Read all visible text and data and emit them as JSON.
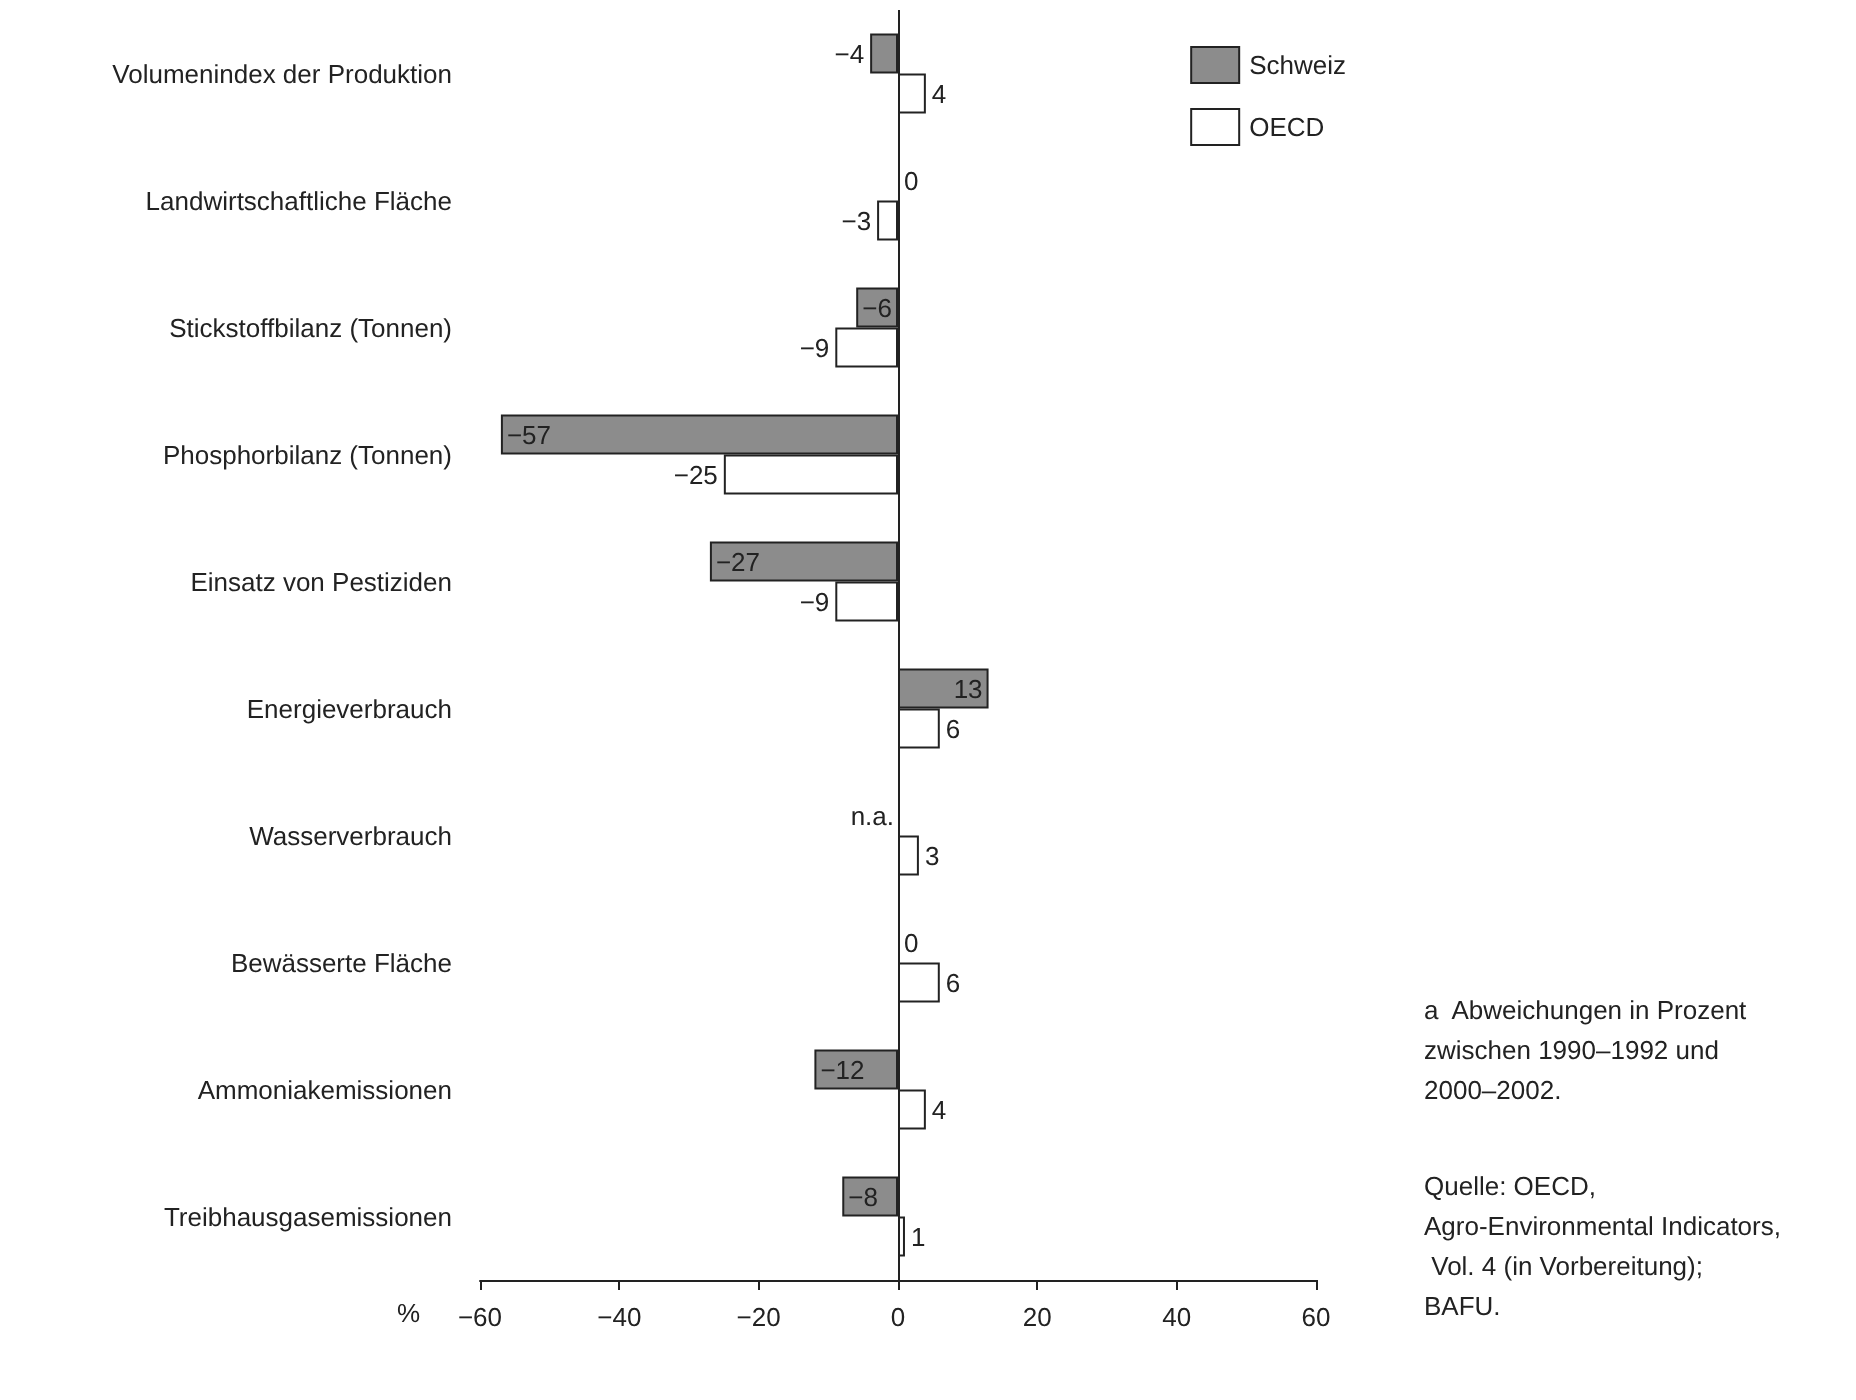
{
  "chart_data": {
    "type": "bar",
    "orientation": "horizontal",
    "xlabel": "%",
    "categories": [
      "Volumenindex der Produktion",
      "Landwirtschaftliche Fläche",
      "Stickstoffbilanz (Tonnen)",
      "Phosphorbilanz (Tonnen)",
      "Einsatz von Pestiziden",
      "Energieverbrauch",
      "Wasserverbrauch",
      "Bewässerte Fläche",
      "Ammoniakemissionen",
      "Treibhausgasemissionen"
    ],
    "series": [
      {
        "name": "Schweiz",
        "color": "#8c8c8c",
        "values": [
          -4,
          0,
          -6,
          -57,
          -27,
          13,
          null,
          0,
          -12,
          -8
        ],
        "value_labels": [
          "−4",
          "0",
          "−6",
          "−57",
          "−27",
          "13",
          "n.a.",
          "0",
          "−12",
          "−8"
        ]
      },
      {
        "name": "OECD",
        "color": "#ffffff",
        "values": [
          4,
          -3,
          -9,
          -25,
          -9,
          6,
          3,
          6,
          4,
          1
        ],
        "value_labels": [
          "4",
          "−3",
          "−9",
          "−25",
          "−9",
          "6",
          "3",
          "6",
          "4",
          "1"
        ]
      }
    ],
    "ref_lines": [
      {
        "axis": "x",
        "value": 0,
        "color": "#222222",
        "line_style": "solid"
      }
    ],
    "xlim": [
      -60,
      60
    ],
    "xticks": [
      -60,
      -40,
      -20,
      0,
      20,
      40,
      60
    ],
    "grid": false,
    "legend": "top right",
    "annotations": [
      "a  Abweichungen in Prozent zwischen 1990–1992 und 2000–2002.",
      "Quelle: OECD, Agro-Environmental Indicators, Vol. 4 (in Vorbereitung); BAFU."
    ]
  }
}
